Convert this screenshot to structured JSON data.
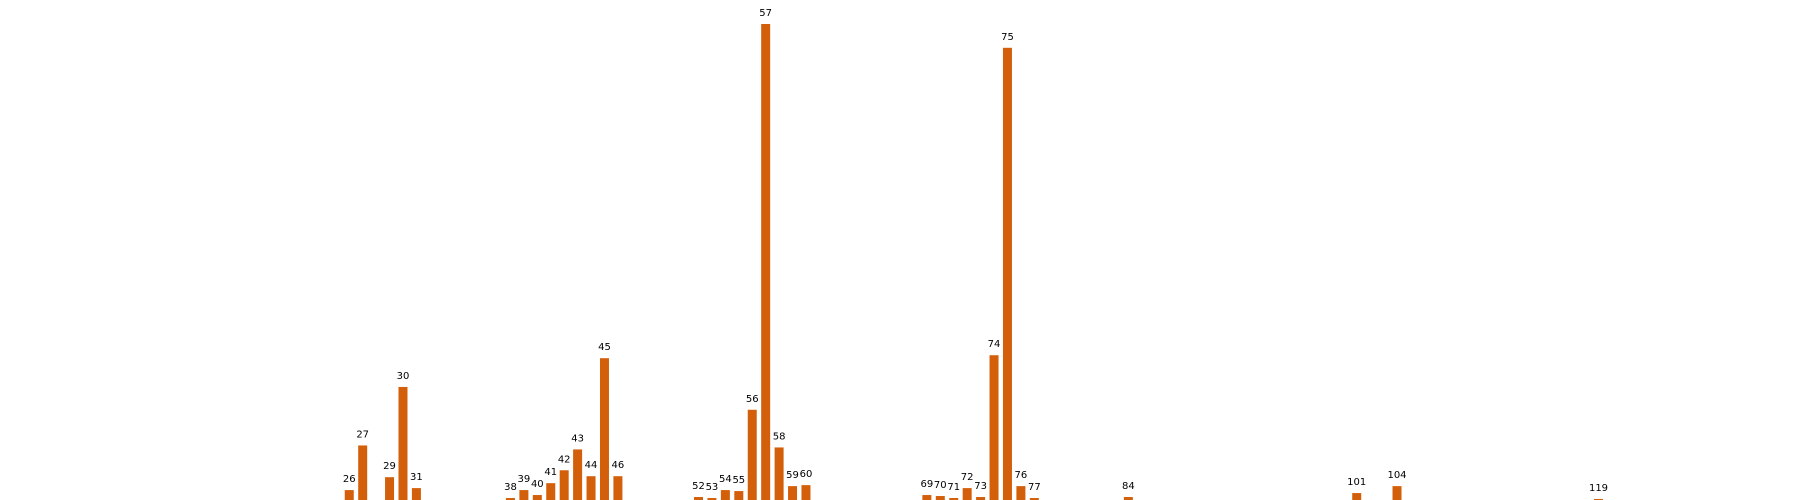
{
  "chart_data": {
    "type": "bar",
    "color": "#D35F0A",
    "title": "",
    "xlabel": "",
    "ylabel": "",
    "x_range": [
      0,
      134
    ],
    "ylim": [
      0,
      48
    ],
    "grid": false,
    "axes_visible": false,
    "bars": [
      {
        "x": 26,
        "label": "26",
        "value": 1.0
      },
      {
        "x": 27,
        "label": "27",
        "value": 5.5
      },
      {
        "x": 29,
        "label": "29",
        "value": 2.3
      },
      {
        "x": 30,
        "label": "30",
        "value": 11.4
      },
      {
        "x": 31,
        "label": "31",
        "value": 1.2
      },
      {
        "x": 38,
        "label": "38",
        "value": 0.2
      },
      {
        "x": 39,
        "label": "39",
        "value": 1.0
      },
      {
        "x": 40,
        "label": "40",
        "value": 0.5
      },
      {
        "x": 41,
        "label": "41",
        "value": 1.7
      },
      {
        "x": 42,
        "label": "42",
        "value": 3.0
      },
      {
        "x": 43,
        "label": "43",
        "value": 5.1
      },
      {
        "x": 44,
        "label": "44",
        "value": 2.4
      },
      {
        "x": 45,
        "label": "45",
        "value": 14.3
      },
      {
        "x": 46,
        "label": "46",
        "value": 2.4
      },
      {
        "x": 52,
        "label": "52",
        "value": 0.3
      },
      {
        "x": 53,
        "label": "53",
        "value": 0.2
      },
      {
        "x": 54,
        "label": "54",
        "value": 1.0
      },
      {
        "x": 55,
        "label": "55",
        "value": 0.9
      },
      {
        "x": 56,
        "label": "56",
        "value": 9.1
      },
      {
        "x": 57,
        "label": "57",
        "value": 48.0
      },
      {
        "x": 58,
        "label": "58",
        "value": 5.3
      },
      {
        "x": 59,
        "label": "59",
        "value": 1.4
      },
      {
        "x": 60,
        "label": "60",
        "value": 1.5
      },
      {
        "x": 69,
        "label": "69",
        "value": 0.5
      },
      {
        "x": 70,
        "label": "70",
        "value": 0.4
      },
      {
        "x": 71,
        "label": "71",
        "value": 0.2
      },
      {
        "x": 72,
        "label": "72",
        "value": 1.2
      },
      {
        "x": 73,
        "label": "73",
        "value": 0.3
      },
      {
        "x": 74,
        "label": "74",
        "value": 14.6
      },
      {
        "x": 75,
        "label": "75",
        "value": 45.6
      },
      {
        "x": 76,
        "label": "76",
        "value": 1.4
      },
      {
        "x": 77,
        "label": "77",
        "value": 0.2
      },
      {
        "x": 84,
        "label": "84",
        "value": 0.3
      },
      {
        "x": 101,
        "label": "101",
        "value": 0.7
      },
      {
        "x": 104,
        "label": "104",
        "value": 1.4
      },
      {
        "x": 119,
        "label": "119",
        "value": 0.1
      }
    ]
  }
}
